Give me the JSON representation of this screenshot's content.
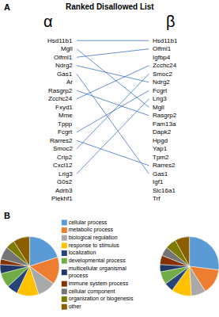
{
  "chart_data": [
    {
      "type": "connections",
      "title": "Ranked Disallowed List",
      "annotations": [
        "A"
      ],
      "series": [
        {
          "name": "α",
          "categories": [
            "Hsd11b1",
            "Mgll",
            "Olfml1",
            "Ndrg2",
            "Gas1",
            "Ar",
            "Rasgrp2",
            "Zcchc24",
            "Fxyd1",
            "Mme",
            "Tppp",
            "Fcgrt",
            "Rarres2",
            "Smoc2",
            "Crip2",
            "Cxcl12",
            "Lrig3",
            "G0s2",
            "Adrb3",
            "Plekhf1"
          ]
        },
        {
          "name": "β",
          "categories": [
            "Hsd11b1",
            "Olfml1",
            "Igfbp4",
            "Zcchc24",
            "Smoc2",
            "Ndrg2",
            "Fcgrt",
            "Lrig3",
            "Mgll",
            "Rasgrp2",
            "Fam13a",
            "Dapk2",
            "Hpgd",
            "Yap1",
            "Tpm2",
            "Rarres2",
            "Gas1",
            "Igf1",
            "Slc16a1",
            "Trf"
          ]
        }
      ],
      "connections": [
        [
          "Hsd11b1",
          "Hsd11b1"
        ],
        [
          "Mgll",
          "Mgll"
        ],
        [
          "Olfml1",
          "Olfml1"
        ],
        [
          "Ndrg2",
          "Ndrg2"
        ],
        [
          "Gas1",
          "Gas1"
        ],
        [
          "Rasgrp2",
          "Rasgrp2"
        ],
        [
          "Zcchc24",
          "Zcchc24"
        ],
        [
          "Fcgrt",
          "Fcgrt"
        ],
        [
          "Rarres2",
          "Rarres2"
        ],
        [
          "Smoc2",
          "Smoc2"
        ],
        [
          "Lrig3",
          "Lrig3"
        ]
      ],
      "color": "#4472C4"
    },
    {
      "type": "pie",
      "annotations": [
        "B"
      ],
      "categories": [
        "cellular process",
        "metabolic process",
        "biological regulation",
        "response to stimulus",
        "localization",
        "developmental process",
        "multicellular organismal\nprocess",
        "immune system process",
        "cellular component",
        "organization or biogenesis",
        "other"
      ],
      "colors": [
        "#5B9BD5",
        "#ED7D31",
        "#A9A9A9",
        "#FFC000",
        "#264478",
        "#70AD47",
        "#1F3864",
        "#833200",
        "#747474",
        "#7B7B00",
        "#8B5E00"
      ],
      "series": [
        {
          "values": [
            20,
            15,
            10,
            12,
            6,
            8,
            5,
            3,
            7,
            5,
            9
          ]
        },
        {
          "values": [
            27,
            14,
            8,
            11,
            5,
            7,
            4,
            5,
            5,
            6,
            8
          ]
        }
      ]
    }
  ]
}
